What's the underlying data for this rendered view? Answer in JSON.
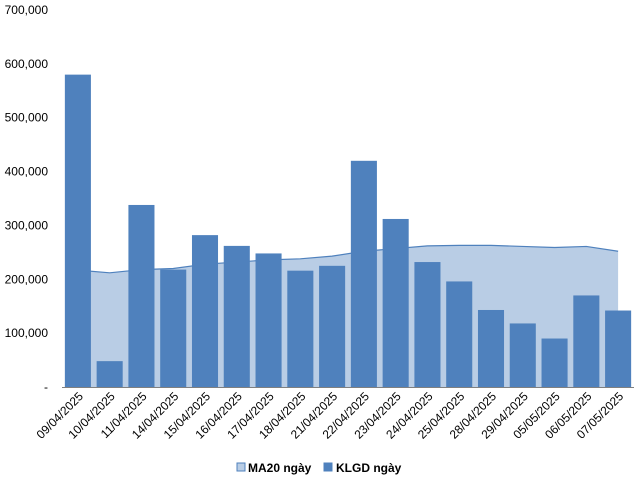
{
  "chart_data": {
    "type": "bar",
    "categories": [
      "09/04/2025",
      "10/04/2025",
      "11/04/2025",
      "14/04/2025",
      "15/04/2025",
      "16/04/2025",
      "17/04/2025",
      "18/04/2025",
      "21/04/2025",
      "22/04/2025",
      "23/04/2025",
      "24/04/2025",
      "25/04/2025",
      "28/04/2025",
      "29/04/2025",
      "05/05/2025",
      "06/05/2025",
      "07/05/2025"
    ],
    "series": [
      {
        "name": "KLGD ngày",
        "kind": "bar",
        "color": "#4f81bd",
        "values": [
          580000,
          48000,
          338000,
          218000,
          282000,
          262000,
          248000,
          216000,
          225000,
          420000,
          312000,
          232000,
          196000,
          143000,
          118000,
          90000,
          170000,
          142000
        ]
      },
      {
        "name": "MA20 ngày",
        "kind": "area",
        "color": "#b9cde5",
        "stroke": "#4f81bd",
        "values": [
          217000,
          212000,
          218000,
          220000,
          228000,
          232000,
          236000,
          238000,
          243000,
          252000,
          257000,
          262000,
          263000,
          263000,
          261000,
          259000,
          261000,
          252000
        ]
      }
    ],
    "yticks": [
      "700,000",
      "600,000",
      "500,000",
      "400,000",
      "300,000",
      "200,000",
      "100,000",
      "-"
    ],
    "ytick_values": [
      700000,
      600000,
      500000,
      400000,
      300000,
      200000,
      100000,
      0
    ],
    "ylim": [
      0,
      700000
    ],
    "legend_position": "bottom",
    "legend": [
      {
        "label": "MA20 ngày",
        "color": "#b9cde5",
        "border": "#4f81bd"
      },
      {
        "label": "KLGD ngày",
        "color": "#4f81bd",
        "border": "#4f81bd"
      }
    ]
  }
}
